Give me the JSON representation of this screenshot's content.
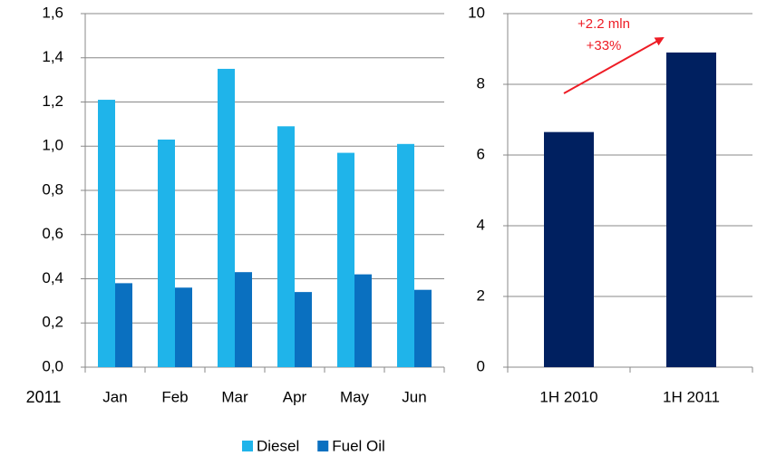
{
  "chart_data": [
    {
      "type": "grouped_bar",
      "x_axis_title": "2011",
      "categories": [
        "Jan",
        "Feb",
        "Mar",
        "Apr",
        "May",
        "Jun"
      ],
      "series": [
        {
          "name": "Diesel",
          "color": "#1fb4ea",
          "values": [
            1.21,
            1.03,
            1.35,
            1.09,
            0.97,
            1.01
          ]
        },
        {
          "name": "Fuel Oil",
          "color": "#0a70c0",
          "values": [
            0.38,
            0.36,
            0.43,
            0.34,
            0.42,
            0.35
          ]
        }
      ],
      "ylim": [
        0,
        1.6
      ],
      "yticks": [
        {
          "value": 0,
          "label": "0,0"
        },
        {
          "value": 0.2,
          "label": "0,2"
        },
        {
          "value": 0.4,
          "label": "0,4"
        },
        {
          "value": 0.6,
          "label": "0,6"
        },
        {
          "value": 0.8,
          "label": "0,8"
        },
        {
          "value": 1.0,
          "label": "1,0"
        },
        {
          "value": 1.2,
          "label": "1,2"
        },
        {
          "value": 1.4,
          "label": "1,4"
        },
        {
          "value": 1.6,
          "label": "1,6"
        }
      ],
      "grid": true,
      "legend": "bottom"
    },
    {
      "type": "bar",
      "categories": [
        "1H 2010",
        "1H 2011"
      ],
      "values": [
        6.65,
        8.9
      ],
      "color": "#002060",
      "ylim": [
        0,
        10
      ],
      "yticks": [
        0,
        2,
        4,
        6,
        8,
        10
      ],
      "grid": true,
      "annotations": [
        "+2.2 mln",
        "+33%"
      ],
      "annotation_color": "#ee1c25"
    }
  ]
}
